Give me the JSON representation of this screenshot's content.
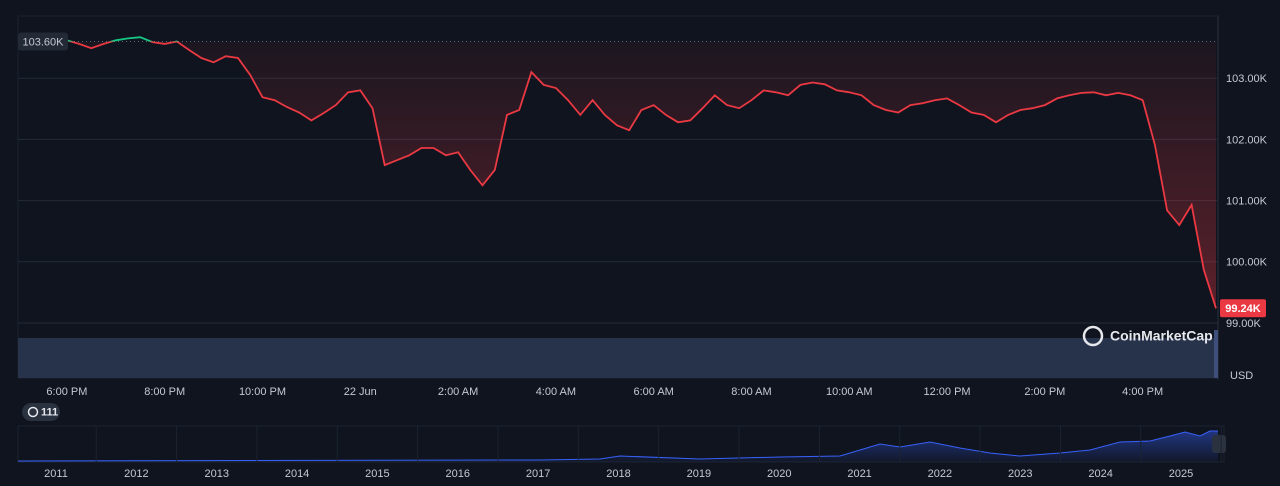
{
  "chart_data": {
    "type": "line",
    "categories": [
      null,
      null,
      null,
      null,
      "6:00 PM",
      null,
      null,
      null,
      null,
      null,
      null,
      null,
      "8:00 PM",
      null,
      null,
      null,
      null,
      null,
      null,
      null,
      "10:00 PM",
      null,
      null,
      null,
      null,
      null,
      null,
      null,
      "22 Jun",
      null,
      null,
      null,
      null,
      null,
      null,
      null,
      "2:00 AM",
      null,
      null,
      null,
      null,
      null,
      null,
      null,
      "4:00 AM",
      null,
      null,
      null,
      null,
      null,
      null,
      null,
      "6:00 AM",
      null,
      null,
      null,
      null,
      null,
      null,
      null,
      "8:00 AM",
      null,
      null,
      null,
      null,
      null,
      null,
      null,
      "10:00 AM",
      null,
      null,
      null,
      null,
      null,
      null,
      null,
      "12:00 PM",
      null,
      null,
      null,
      null,
      null,
      null,
      null,
      "2:00 PM",
      null,
      null,
      null,
      null,
      null,
      null,
      null,
      "4:00 PM",
      null,
      null,
      null,
      null,
      null,
      null
    ],
    "values": [
      103620,
      103650,
      103700,
      103590,
      103620,
      103560,
      103490,
      103560,
      103620,
      103650,
      103670,
      103590,
      103560,
      103600,
      103460,
      103330,
      103260,
      103360,
      103330,
      103050,
      102690,
      102640,
      102530,
      102440,
      102310,
      102430,
      102560,
      102770,
      102800,
      102510,
      101580,
      101660,
      101740,
      101860,
      101860,
      101740,
      101790,
      101500,
      101250,
      101500,
      102400,
      102480,
      103100,
      102890,
      102840,
      102640,
      102400,
      102640,
      102400,
      102230,
      102150,
      102480,
      102560,
      102400,
      102280,
      102310,
      102510,
      102720,
      102560,
      102510,
      102640,
      102800,
      102770,
      102720,
      102890,
      102930,
      102900,
      102800,
      102770,
      102720,
      102560,
      102480,
      102440,
      102560,
      102590,
      102640,
      102670,
      102560,
      102440,
      102400,
      102280,
      102400,
      102480,
      102510,
      102560,
      102670,
      102720,
      102760,
      102770,
      102720,
      102760,
      102720,
      102640,
      101910,
      100840,
      100600,
      100930,
      99870,
      99240
    ],
    "last_price_label": "99.24K",
    "baseline": {
      "value": 103600,
      "label": "103.60K"
    },
    "colors": {
      "up": "#16c784",
      "down": "#ea3943"
    },
    "ylim": [
      99000,
      104000
    ],
    "yticks": [
      {
        "value": 99000,
        "label": "99.00K"
      },
      {
        "value": 100000,
        "label": "100.00K"
      },
      {
        "value": 101000,
        "label": "101.00K"
      },
      {
        "value": 102000,
        "label": "102.00K"
      },
      {
        "value": 103000,
        "label": "103.00K"
      }
    ],
    "grid": true,
    "currency": "USD",
    "watermark": "CoinMarketCap"
  },
  "navigator": {
    "badge": "111",
    "years": [
      "2011",
      "2012",
      "2013",
      "2014",
      "2015",
      "2016",
      "2017",
      "2018",
      "2019",
      "2020",
      "2021",
      "2022",
      "2023",
      "2024",
      "2025"
    ]
  }
}
